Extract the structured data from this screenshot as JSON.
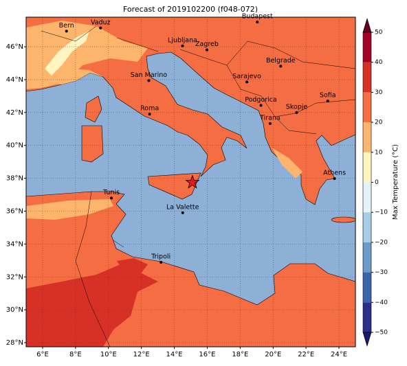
{
  "title": "Forecast of 2019102200 (f048-072)",
  "map": {
    "xlim": [
      5,
      25
    ],
    "ylim": [
      27.75,
      47.8
    ],
    "grid": true,
    "xticks": [
      {
        "value": 6,
        "label": "6°E"
      },
      {
        "value": 8,
        "label": "8°E"
      },
      {
        "value": 10,
        "label": "10°E"
      },
      {
        "value": 12,
        "label": "12°E"
      },
      {
        "value": 14,
        "label": "14°E"
      },
      {
        "value": 16,
        "label": "16°E"
      },
      {
        "value": 18,
        "label": "18°E"
      },
      {
        "value": 20,
        "label": "20°E"
      },
      {
        "value": 22,
        "label": "22°E"
      },
      {
        "value": 24,
        "label": "24°E"
      }
    ],
    "yticks": [
      {
        "value": 28,
        "label": "28°N"
      },
      {
        "value": 30,
        "label": "30°N"
      },
      {
        "value": 32,
        "label": "32°N"
      },
      {
        "value": 34,
        "label": "34°N"
      },
      {
        "value": 36,
        "label": "36°N"
      },
      {
        "value": 38,
        "label": "38°N"
      },
      {
        "value": 40,
        "label": "40°N"
      },
      {
        "value": 42,
        "label": "42°N"
      },
      {
        "value": 44,
        "label": "44°N"
      },
      {
        "value": 46,
        "label": "46°N"
      }
    ],
    "cities": [
      {
        "name": "Bern",
        "lon": 7.45,
        "lat": 46.95
      },
      {
        "name": "Vaduz",
        "lon": 9.52,
        "lat": 47.14
      },
      {
        "name": "Budapest",
        "lon": 19.04,
        "lat": 47.5
      },
      {
        "name": "Ljubljana",
        "lon": 14.5,
        "lat": 46.05
      },
      {
        "name": "Zagreb",
        "lon": 15.98,
        "lat": 45.81
      },
      {
        "name": "Belgrade",
        "lon": 20.46,
        "lat": 44.82
      },
      {
        "name": "San Marino",
        "lon": 12.45,
        "lat": 43.94
      },
      {
        "name": "Sarajevo",
        "lon": 18.41,
        "lat": 43.86
      },
      {
        "name": "Podgorica",
        "lon": 19.26,
        "lat": 42.44
      },
      {
        "name": "Sofia",
        "lon": 23.32,
        "lat": 42.7
      },
      {
        "name": "Roma",
        "lon": 12.5,
        "lat": 41.9
      },
      {
        "name": "Skopje",
        "lon": 21.43,
        "lat": 42.0
      },
      {
        "name": "Tirana",
        "lon": 19.82,
        "lat": 41.33
      },
      {
        "name": "Athens",
        "lon": 23.73,
        "lat": 37.98
      },
      {
        "name": "Tunis",
        "lon": 10.18,
        "lat": 36.8
      },
      {
        "name": "La Valette",
        "lon": 14.51,
        "lat": 35.9
      },
      {
        "name": "Tripoli",
        "lon": 13.19,
        "lat": 32.89
      }
    ],
    "marker": {
      "lon": 15.1,
      "lat": 37.75,
      "color": "#e31a1c"
    }
  },
  "colorbar": {
    "label": "Max Temperature (°C)",
    "ticks": [
      {
        "value": -50,
        "label": "−50"
      },
      {
        "value": -40,
        "label": "−40"
      },
      {
        "value": -30,
        "label": "−30"
      },
      {
        "value": -20,
        "label": "−20"
      },
      {
        "value": -10,
        "label": "−10"
      },
      0,
      10,
      20,
      30,
      40,
      50
    ],
    "colors": [
      "#2b2f8c",
      "#3d64ab",
      "#6a9bc9",
      "#a5cde3",
      "#e3f3f8",
      "#fef5c0",
      "#fdb46c",
      "#f46d43",
      "#d73027",
      "#a50026"
    ],
    "extend_colors": [
      "#1a1a6e",
      "#67001f"
    ]
  }
}
